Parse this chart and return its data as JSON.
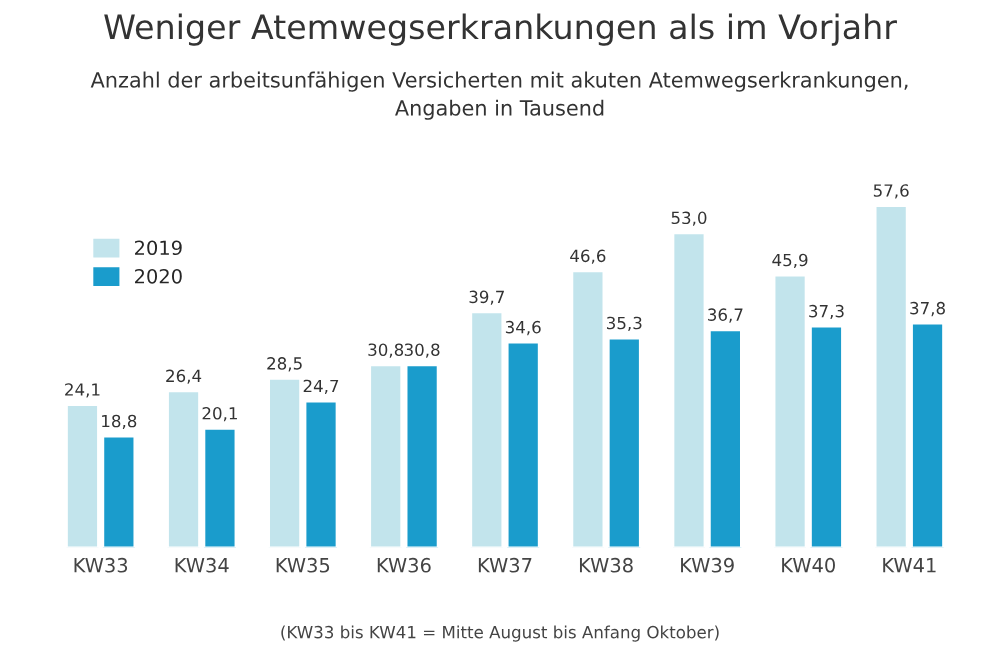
{
  "chart_data": {
    "type": "bar",
    "title": "Weniger Atemwegserkrankungen als im Vorjahr",
    "subtitle": "Anzahl der arbeitsunfähigen Versicherten mit akuten Atemwegserkrankungen,\nAngaben in Tausend",
    "categories": [
      "KW33",
      "KW34",
      "KW35",
      "KW36",
      "KW37",
      "KW38",
      "KW39",
      "KW40",
      "KW41"
    ],
    "series": [
      {
        "name": "2019",
        "color": "#c2e4ec",
        "values": [
          24.1,
          26.4,
          28.5,
          30.8,
          39.7,
          46.6,
          53.0,
          45.9,
          57.6
        ],
        "value_labels": [
          "24,1",
          "26,4",
          "28,5",
          "30,8",
          "39,7",
          "46,6",
          "53,0",
          "45,9",
          "57,6"
        ]
      },
      {
        "name": "2020",
        "color": "#1a9ccc",
        "values": [
          18.8,
          20.1,
          24.7,
          30.8,
          34.6,
          35.3,
          36.7,
          37.3,
          37.8
        ],
        "value_labels": [
          "18,8",
          "20,1",
          "24,7",
          "30,8",
          "34,6",
          "35,3",
          "36,7",
          "37,3",
          "37,8"
        ]
      }
    ],
    "annotations": [
      "(KW33 bis KW41 = Mitte August bis Anfang Oktober)"
    ],
    "legend": "top left",
    "grid": false
  }
}
